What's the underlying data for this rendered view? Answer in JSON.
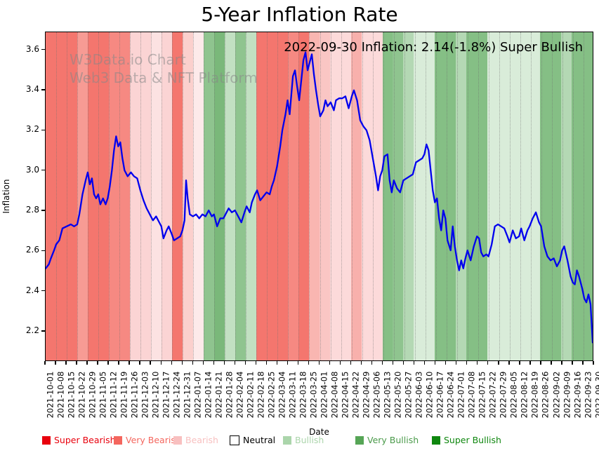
{
  "title": "5-Year Inflation Rate",
  "watermark": {
    "line1": "W3Data.io Chart",
    "line2": "Web3 Data & NFT Platform"
  },
  "annotation": "2022-09-30 Inflation: 2.14(-1.8%) Super Bullish",
  "chart_data": {
    "type": "line",
    "title": "5-Year Inflation Rate",
    "xlabel": "Date",
    "ylabel": "Inflation",
    "ylim": [
      2.05,
      3.69
    ],
    "y_ticks": [
      "3.6",
      "3.4",
      "3.2",
      "3.0",
      "2.8",
      "2.6",
      "2.4",
      "2.2"
    ],
    "y_tick_values": [
      3.6,
      3.4,
      3.2,
      3.0,
      2.8,
      2.6,
      2.4,
      2.2
    ],
    "grid": "vertical-dotted",
    "legend_position": "bottom",
    "line_color": "#0000ee",
    "x_tick_labels": [
      "2021-10-01",
      "2021-10-08",
      "2021-10-15",
      "2021-10-22",
      "2021-10-29",
      "2021-11-05",
      "2021-11-12",
      "2021-11-19",
      "2021-11-26",
      "2021-12-03",
      "2021-12-10",
      "2021-12-17",
      "2021-12-24",
      "2021-12-31",
      "2022-01-07",
      "2022-01-14",
      "2022-01-21",
      "2022-01-28",
      "2022-02-04",
      "2022-02-11",
      "2022-02-18",
      "2022-02-25",
      "2022-03-04",
      "2022-03-11",
      "2022-03-18",
      "2022-03-25",
      "2022-04-01",
      "2022-04-08",
      "2022-04-15",
      "2022-04-22",
      "2022-04-29",
      "2022-05-06",
      "2022-05-13",
      "2022-05-20",
      "2022-05-27",
      "2022-06-03",
      "2022-06-10",
      "2022-06-17",
      "2022-06-24",
      "2022-07-01",
      "2022-07-08",
      "2022-07-15",
      "2022-07-22",
      "2022-07-29",
      "2022-08-05",
      "2022-08-12",
      "2022-08-19",
      "2022-08-26",
      "2022-09-02",
      "2022-09-09",
      "2022-09-16",
      "2022-09-23",
      "2022-09-30"
    ],
    "series": [
      {
        "name": "5-Year Inflation Rate",
        "x_unit": "weeks-from-2021-10-01",
        "points": [
          [
            0,
            2.51
          ],
          [
            0.3,
            2.53
          ],
          [
            0.5,
            2.56
          ],
          [
            0.8,
            2.6
          ],
          [
            1,
            2.63
          ],
          [
            1.3,
            2.65
          ],
          [
            1.6,
            2.71
          ],
          [
            2,
            2.72
          ],
          [
            2.4,
            2.73
          ],
          [
            2.7,
            2.72
          ],
          [
            3,
            2.73
          ],
          [
            3.2,
            2.78
          ],
          [
            3.5,
            2.88
          ],
          [
            3.8,
            2.95
          ],
          [
            4,
            2.99
          ],
          [
            4.2,
            2.93
          ],
          [
            4.4,
            2.96
          ],
          [
            4.6,
            2.88
          ],
          [
            4.8,
            2.86
          ],
          [
            5,
            2.88
          ],
          [
            5.2,
            2.83
          ],
          [
            5.45,
            2.86
          ],
          [
            5.7,
            2.83
          ],
          [
            5.9,
            2.86
          ],
          [
            6.1,
            2.92
          ],
          [
            6.3,
            3
          ],
          [
            6.5,
            3.1
          ],
          [
            6.7,
            3.17
          ],
          [
            6.9,
            3.12
          ],
          [
            7.1,
            3.14
          ],
          [
            7.3,
            3.06
          ],
          [
            7.5,
            3
          ],
          [
            7.8,
            2.97
          ],
          [
            8.1,
            2.99
          ],
          [
            8.4,
            2.97
          ],
          [
            8.7,
            2.96
          ],
          [
            9,
            2.9
          ],
          [
            9.3,
            2.85
          ],
          [
            9.6,
            2.81
          ],
          [
            9.9,
            2.78
          ],
          [
            10.2,
            2.75
          ],
          [
            10.5,
            2.77
          ],
          [
            10.8,
            2.74
          ],
          [
            11,
            2.72
          ],
          [
            11.2,
            2.66
          ],
          [
            11.5,
            2.7
          ],
          [
            11.7,
            2.72
          ],
          [
            12,
            2.68
          ],
          [
            12.2,
            2.65
          ],
          [
            12.5,
            2.66
          ],
          [
            12.8,
            2.67
          ],
          [
            13,
            2.7
          ],
          [
            13.2,
            2.75
          ],
          [
            13.35,
            2.95
          ],
          [
            13.5,
            2.86
          ],
          [
            13.7,
            2.78
          ],
          [
            14,
            2.77
          ],
          [
            14.3,
            2.78
          ],
          [
            14.6,
            2.76
          ],
          [
            14.9,
            2.78
          ],
          [
            15.2,
            2.77
          ],
          [
            15.5,
            2.8
          ],
          [
            15.8,
            2.77
          ],
          [
            16,
            2.78
          ],
          [
            16.3,
            2.72
          ],
          [
            16.6,
            2.76
          ],
          [
            16.9,
            2.76
          ],
          [
            17.1,
            2.78
          ],
          [
            17.4,
            2.81
          ],
          [
            17.7,
            2.79
          ],
          [
            18,
            2.8
          ],
          [
            18.3,
            2.77
          ],
          [
            18.6,
            2.74
          ],
          [
            18.9,
            2.79
          ],
          [
            19.1,
            2.82
          ],
          [
            19.4,
            2.79
          ],
          [
            19.6,
            2.84
          ],
          [
            19.9,
            2.88
          ],
          [
            20.1,
            2.9
          ],
          [
            20.4,
            2.85
          ],
          [
            20.7,
            2.87
          ],
          [
            21,
            2.89
          ],
          [
            21.3,
            2.88
          ],
          [
            21.5,
            2.92
          ],
          [
            21.7,
            2.95
          ],
          [
            22,
            3.02
          ],
          [
            22.3,
            3.12
          ],
          [
            22.5,
            3.2
          ],
          [
            22.8,
            3.28
          ],
          [
            23,
            3.35
          ],
          [
            23.2,
            3.28
          ],
          [
            23.5,
            3.47
          ],
          [
            23.7,
            3.5
          ],
          [
            23.9,
            3.42
          ],
          [
            24.1,
            3.35
          ],
          [
            24.3,
            3.45
          ],
          [
            24.5,
            3.55
          ],
          [
            24.7,
            3.59
          ],
          [
            24.9,
            3.5
          ],
          [
            25.1,
            3.54
          ],
          [
            25.3,
            3.58
          ],
          [
            25.5,
            3.48
          ],
          [
            25.7,
            3.4
          ],
          [
            25.9,
            3.33
          ],
          [
            26.1,
            3.27
          ],
          [
            26.4,
            3.3
          ],
          [
            26.6,
            3.35
          ],
          [
            26.8,
            3.32
          ],
          [
            27.1,
            3.34
          ],
          [
            27.4,
            3.3
          ],
          [
            27.6,
            3.35
          ],
          [
            27.9,
            3.36
          ],
          [
            28.2,
            3.36
          ],
          [
            28.5,
            3.37
          ],
          [
            28.8,
            3.31
          ],
          [
            29.1,
            3.37
          ],
          [
            29.3,
            3.4
          ],
          [
            29.6,
            3.35
          ],
          [
            29.9,
            3.25
          ],
          [
            30.2,
            3.22
          ],
          [
            30.5,
            3.2
          ],
          [
            30.8,
            3.15
          ],
          [
            31,
            3.09
          ],
          [
            31.2,
            3.03
          ],
          [
            31.4,
            2.97
          ],
          [
            31.6,
            2.9
          ],
          [
            31.8,
            2.97
          ],
          [
            32,
            3
          ],
          [
            32.2,
            3.07
          ],
          [
            32.5,
            3.08
          ],
          [
            32.7,
            2.95
          ],
          [
            32.9,
            2.89
          ],
          [
            33.1,
            2.95
          ],
          [
            33.4,
            2.91
          ],
          [
            33.7,
            2.89
          ],
          [
            34,
            2.95
          ],
          [
            34.3,
            2.96
          ],
          [
            34.6,
            2.97
          ],
          [
            34.9,
            2.98
          ],
          [
            35.2,
            3.04
          ],
          [
            35.5,
            3.05
          ],
          [
            35.8,
            3.06
          ],
          [
            36,
            3.08
          ],
          [
            36.2,
            3.13
          ],
          [
            36.4,
            3.1
          ],
          [
            36.6,
            3
          ],
          [
            36.8,
            2.9
          ],
          [
            37,
            2.84
          ],
          [
            37.2,
            2.86
          ],
          [
            37.4,
            2.76
          ],
          [
            37.6,
            2.7
          ],
          [
            37.8,
            2.8
          ],
          [
            38,
            2.76
          ],
          [
            38.2,
            2.65
          ],
          [
            38.5,
            2.6
          ],
          [
            38.7,
            2.72
          ],
          [
            38.9,
            2.62
          ],
          [
            39.1,
            2.55
          ],
          [
            39.3,
            2.5
          ],
          [
            39.5,
            2.55
          ],
          [
            39.7,
            2.51
          ],
          [
            39.9,
            2.56
          ],
          [
            40.1,
            2.6
          ],
          [
            40.4,
            2.55
          ],
          [
            40.7,
            2.62
          ],
          [
            41,
            2.67
          ],
          [
            41.2,
            2.66
          ],
          [
            41.4,
            2.59
          ],
          [
            41.6,
            2.57
          ],
          [
            41.9,
            2.58
          ],
          [
            42.1,
            2.57
          ],
          [
            42.4,
            2.63
          ],
          [
            42.7,
            2.72
          ],
          [
            43,
            2.73
          ],
          [
            43.3,
            2.72
          ],
          [
            43.6,
            2.71
          ],
          [
            43.9,
            2.67
          ],
          [
            44.1,
            2.64
          ],
          [
            44.4,
            2.7
          ],
          [
            44.7,
            2.66
          ],
          [
            45,
            2.67
          ],
          [
            45.2,
            2.71
          ],
          [
            45.5,
            2.65
          ],
          [
            45.8,
            2.7
          ],
          [
            46,
            2.72
          ],
          [
            46.3,
            2.76
          ],
          [
            46.6,
            2.79
          ],
          [
            46.9,
            2.74
          ],
          [
            47.1,
            2.72
          ],
          [
            47.4,
            2.62
          ],
          [
            47.7,
            2.57
          ],
          [
            48,
            2.55
          ],
          [
            48.3,
            2.56
          ],
          [
            48.6,
            2.52
          ],
          [
            48.9,
            2.55
          ],
          [
            49.1,
            2.6
          ],
          [
            49.3,
            2.62
          ],
          [
            49.6,
            2.55
          ],
          [
            49.9,
            2.47
          ],
          [
            50.1,
            2.44
          ],
          [
            50.3,
            2.43
          ],
          [
            50.5,
            2.5
          ],
          [
            50.7,
            2.47
          ],
          [
            51,
            2.41
          ],
          [
            51.2,
            2.36
          ],
          [
            51.4,
            2.34
          ],
          [
            51.6,
            2.38
          ],
          [
            51.8,
            2.33
          ],
          [
            52,
            2.14
          ]
        ]
      }
    ],
    "background_bands": {
      "note": "one vertical band per week between consecutive x ticks, colored by sentiment",
      "colors": [
        "#f4766e",
        "#f4766e",
        "#f4766e",
        "#f79b94",
        "#f4766e",
        "#f4766e",
        "#f68982",
        "#f68982",
        "#fbd4d4",
        "#fbd4d4",
        "#fce2e2",
        "#fbd4d4",
        "#f4766e",
        "#fbd0cd",
        "#fdeaea",
        "#8fc48f",
        "#7ab87a",
        "#c2e0c2",
        "#8fc48f",
        "#c2e0c2",
        "#f4766e",
        "#f4766e",
        "#f4766e",
        "#f68982",
        "#f4766e",
        "#f9b6b1",
        "#fac6c4",
        "#fcdada",
        "#fcdada",
        "#f8b0ac",
        "#fcdada",
        "#fcdada",
        "#85bf85",
        "#8fc48f",
        "#b4d8b4",
        "#d9ecd9",
        "#d9ecd9",
        "#85bf85",
        "#85bf85",
        "#b4d8b4",
        "#85bf85",
        "#85bf85",
        "#d9ecd9",
        "#d9ecd9",
        "#d9ecd9",
        "#d9ecd9",
        "#d9ecd9",
        "#85bf85",
        "#85bf85",
        "#b4d8b4",
        "#85bf85",
        "#85bf85"
      ],
      "sentiments": [
        "Very Bearish",
        "Very Bearish",
        "Very Bearish",
        "Very Bearish",
        "Very Bearish",
        "Very Bearish",
        "Very Bearish",
        "Very Bearish",
        "Bearish",
        "Bearish",
        "Bearish",
        "Bearish",
        "Very Bearish",
        "Bearish",
        "Neutral",
        "Very Bullish",
        "Super Bullish",
        "Bullish",
        "Very Bullish",
        "Bullish",
        "Very Bearish",
        "Very Bearish",
        "Very Bearish",
        "Very Bearish",
        "Very Bearish",
        "Bearish",
        "Bearish",
        "Bearish",
        "Bearish",
        "Bearish",
        "Bearish",
        "Bearish",
        "Very Bullish",
        "Very Bullish",
        "Bullish",
        "Bullish",
        "Bullish",
        "Very Bullish",
        "Very Bullish",
        "Bullish",
        "Very Bullish",
        "Very Bullish",
        "Bullish",
        "Bullish",
        "Bullish",
        "Bullish",
        "Bullish",
        "Very Bullish",
        "Very Bullish",
        "Bullish",
        "Very Bullish",
        "Very Bullish"
      ]
    }
  },
  "legend": {
    "items": [
      {
        "label": "Super Bearish",
        "color": "#e8000d",
        "text_color": "#e8000d",
        "border": false
      },
      {
        "label": "Very Bearish",
        "color": "#f4665e",
        "text_color": "#f4665e",
        "border": false
      },
      {
        "label": "Bearish",
        "color": "#f8c0c0",
        "text_color": "#f8c0c0",
        "border": false
      },
      {
        "label": "Neutral",
        "color": "#ffffff",
        "text_color": "#000000",
        "border": true
      },
      {
        "label": "Bullish",
        "color": "#abd5ab",
        "text_color": "#abd5ab",
        "border": false
      },
      {
        "label": "Very Bullish",
        "color": "#56a556",
        "text_color": "#4a9a4a",
        "border": false
      },
      {
        "label": "Super Bullish",
        "color": "#0f870f",
        "text_color": "#0f870f",
        "border": false
      }
    ]
  }
}
